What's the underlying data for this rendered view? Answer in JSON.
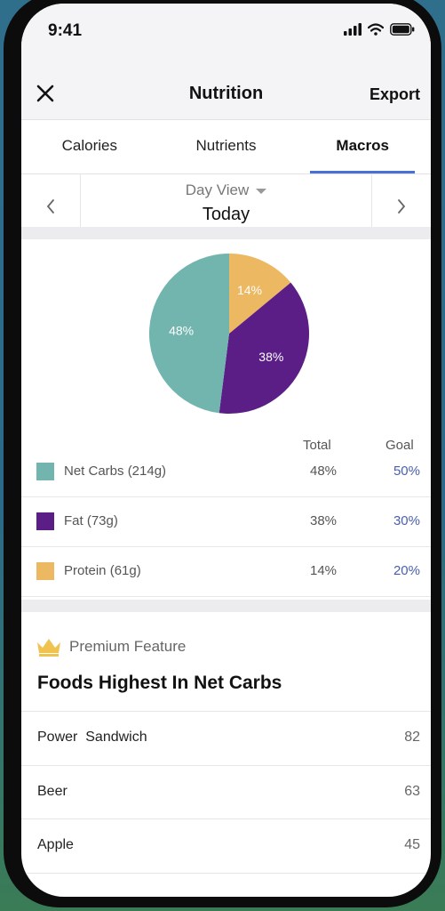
{
  "status": {
    "time": "9:41"
  },
  "navbar": {
    "title": "Nutrition",
    "export_label": "Export"
  },
  "tabs": [
    {
      "label": "Calories",
      "active": false
    },
    {
      "label": "Nutrients",
      "active": false
    },
    {
      "label": "Macros",
      "active": true
    }
  ],
  "date_selector": {
    "view_label": "Day View",
    "date_label": "Today"
  },
  "chart_data": {
    "type": "pie",
    "slices": [
      {
        "name": "Net Carbs",
        "value": 48,
        "label": "48%",
        "color": "#71b5ae"
      },
      {
        "name": "Fat",
        "value": 38,
        "label": "38%",
        "color": "#5a1e86"
      },
      {
        "name": "Protein",
        "value": 14,
        "label": "14%",
        "color": "#ecb862"
      }
    ]
  },
  "legend": {
    "total_header": "Total",
    "goal_header": "Goal",
    "rows": [
      {
        "label": "Net Carbs (214g)",
        "total": "48%",
        "goal": "50%",
        "color": "#71b5ae"
      },
      {
        "label": "Fat (73g)",
        "total": "38%",
        "goal": "30%",
        "color": "#5a1e86"
      },
      {
        "label": "Protein (61g)",
        "total": "14%",
        "goal": "20%",
        "color": "#ecb862"
      }
    ]
  },
  "premium": {
    "label": "Premium Feature",
    "icon": "crown-icon",
    "color": "#f0c24f"
  },
  "foods": {
    "title": "Foods Highest In Net Carbs",
    "items": [
      {
        "name": "Power  Sandwich",
        "value": "82"
      },
      {
        "name": "Beer",
        "value": "63"
      },
      {
        "name": "Apple",
        "value": "45"
      }
    ]
  },
  "colors": {
    "accent": "#4a6fd6",
    "goal_text": "#4a5faa"
  }
}
